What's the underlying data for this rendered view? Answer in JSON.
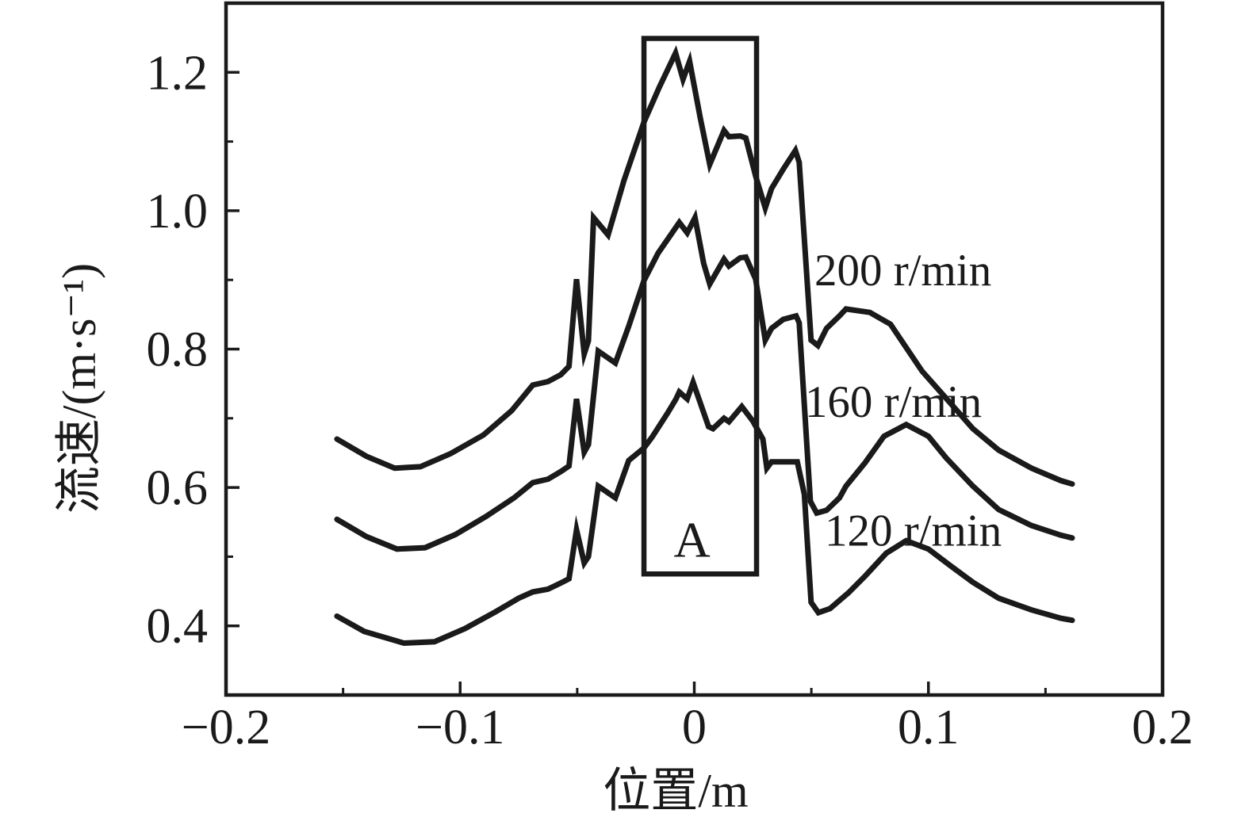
{
  "figure": {
    "background": "#ffffff",
    "ink_color": "#1a1a1a"
  },
  "chart_data": {
    "type": "line",
    "title": "",
    "xlabel": "位置/m",
    "ylabel": "流速/(m·s⁻¹)",
    "xlim": [
      -0.2,
      0.2
    ],
    "ylim": [
      0.3,
      1.3
    ],
    "grid": false,
    "frame": "full-box",
    "x_ticks": {
      "major": [
        -0.2,
        -0.1,
        0,
        0.1,
        0.2
      ],
      "major_labels": [
        "−0.2",
        "−0.1",
        "0",
        "0.1",
        "0.2"
      ],
      "minor": [
        -0.15,
        -0.05,
        0.05,
        0.15
      ]
    },
    "y_ticks": {
      "major": [
        0.4,
        0.6,
        0.8,
        1.0,
        1.2
      ],
      "major_labels": [
        "0.4",
        "0.6",
        "0.8",
        "1.0",
        "1.2"
      ],
      "minor": [
        0.5,
        0.7,
        0.9,
        1.1
      ]
    },
    "legend": "inline-labels",
    "series": [
      {
        "name": "200 r/min",
        "label": "200 r/min",
        "label_anchor": {
          "x": 0.0513,
          "y": 0.915
        },
        "points": [
          [
            -0.1526,
            0.67
          ],
          [
            -0.14,
            0.645
          ],
          [
            -0.128,
            0.628
          ],
          [
            -0.117,
            0.63
          ],
          [
            -0.104,
            0.649
          ],
          [
            -0.09,
            0.676
          ],
          [
            -0.078,
            0.711
          ],
          [
            -0.069,
            0.748
          ],
          [
            -0.0625,
            0.753
          ],
          [
            -0.057,
            0.763
          ],
          [
            -0.0535,
            0.775
          ],
          [
            -0.0503,
            0.901
          ],
          [
            -0.047,
            0.793
          ],
          [
            -0.0452,
            0.812
          ],
          [
            -0.043,
            0.99
          ],
          [
            -0.0368,
            0.965
          ],
          [
            -0.03,
            1.044
          ],
          [
            -0.0215,
            1.128
          ],
          [
            -0.015,
            1.178
          ],
          [
            -0.008,
            1.228
          ],
          [
            -0.0048,
            1.19
          ],
          [
            -0.002,
            1.216
          ],
          [
            0.0025,
            1.135
          ],
          [
            0.0066,
            1.067
          ],
          [
            0.0127,
            1.116
          ],
          [
            0.0148,
            1.107
          ],
          [
            0.0196,
            1.108
          ],
          [
            0.022,
            1.105
          ],
          [
            0.0262,
            1.05
          ],
          [
            0.0303,
            1.004
          ],
          [
            0.033,
            1.032
          ],
          [
            0.038,
            1.06
          ],
          [
            0.0432,
            1.087
          ],
          [
            0.0448,
            1.07
          ],
          [
            0.0499,
            0.813
          ],
          [
            0.0528,
            0.805
          ],
          [
            0.0565,
            0.83
          ],
          [
            0.062,
            0.848
          ],
          [
            0.0648,
            0.858
          ],
          [
            0.075,
            0.853
          ],
          [
            0.0838,
            0.836
          ],
          [
            0.0973,
            0.768
          ],
          [
            0.1065,
            0.733
          ],
          [
            0.119,
            0.685
          ],
          [
            0.13,
            0.654
          ],
          [
            0.144,
            0.628
          ],
          [
            0.1565,
            0.61
          ],
          [
            0.1614,
            0.605
          ]
        ]
      },
      {
        "name": "160 r/min",
        "label": "160 r/min",
        "label_anchor": {
          "x": 0.0472,
          "y": 0.725
        },
        "points": [
          [
            -0.1526,
            0.554
          ],
          [
            -0.14,
            0.529
          ],
          [
            -0.127,
            0.511
          ],
          [
            -0.115,
            0.513
          ],
          [
            -0.102,
            0.532
          ],
          [
            -0.089,
            0.558
          ],
          [
            -0.077,
            0.585
          ],
          [
            -0.069,
            0.607
          ],
          [
            -0.0625,
            0.612
          ],
          [
            -0.057,
            0.623
          ],
          [
            -0.0535,
            0.631
          ],
          [
            -0.0503,
            0.728
          ],
          [
            -0.047,
            0.651
          ],
          [
            -0.0452,
            0.662
          ],
          [
            -0.041,
            0.797
          ],
          [
            -0.0337,
            0.78
          ],
          [
            -0.028,
            0.833
          ],
          [
            -0.0215,
            0.899
          ],
          [
            -0.0154,
            0.939
          ],
          [
            -0.0064,
            0.983
          ],
          [
            -0.003,
            0.968
          ],
          [
            0.0003,
            0.99
          ],
          [
            0.004,
            0.924
          ],
          [
            0.0066,
            0.894
          ],
          [
            0.0127,
            0.93
          ],
          [
            0.0148,
            0.92
          ],
          [
            0.0196,
            0.932
          ],
          [
            0.022,
            0.933
          ],
          [
            0.0262,
            0.901
          ],
          [
            0.0303,
            0.813
          ],
          [
            0.033,
            0.83
          ],
          [
            0.038,
            0.843
          ],
          [
            0.0435,
            0.848
          ],
          [
            0.0448,
            0.838
          ],
          [
            0.0496,
            0.58
          ],
          [
            0.0523,
            0.563
          ],
          [
            0.0565,
            0.567
          ],
          [
            0.062,
            0.585
          ],
          [
            0.0648,
            0.602
          ],
          [
            0.073,
            0.636
          ],
          [
            0.081,
            0.674
          ],
          [
            0.0905,
            0.691
          ],
          [
            0.1,
            0.674
          ],
          [
            0.1075,
            0.643
          ],
          [
            0.119,
            0.602
          ],
          [
            0.13,
            0.568
          ],
          [
            0.144,
            0.545
          ],
          [
            0.1565,
            0.531
          ],
          [
            0.1614,
            0.527
          ]
        ]
      },
      {
        "name": "120 r/min",
        "label": "120 r/min",
        "label_anchor": {
          "x": 0.0557,
          "y": 0.539
        },
        "points": [
          [
            -0.1526,
            0.414
          ],
          [
            -0.141,
            0.392
          ],
          [
            -0.124,
            0.375
          ],
          [
            -0.111,
            0.377
          ],
          [
            -0.098,
            0.396
          ],
          [
            -0.085,
            0.42
          ],
          [
            -0.075,
            0.44
          ],
          [
            -0.069,
            0.449
          ],
          [
            -0.0625,
            0.453
          ],
          [
            -0.057,
            0.462
          ],
          [
            -0.0535,
            0.468
          ],
          [
            -0.0503,
            0.539
          ],
          [
            -0.047,
            0.491
          ],
          [
            -0.0452,
            0.5
          ],
          [
            -0.041,
            0.602
          ],
          [
            -0.0337,
            0.585
          ],
          [
            -0.028,
            0.639
          ],
          [
            -0.0215,
            0.657
          ],
          [
            -0.018,
            0.673
          ],
          [
            -0.0113,
            0.708
          ],
          [
            -0.0078,
            0.728
          ],
          [
            -0.0064,
            0.738
          ],
          [
            -0.003,
            0.728
          ],
          [
            -0.0005,
            0.752
          ],
          [
            0.0061,
            0.688
          ],
          [
            0.008,
            0.685
          ],
          [
            0.0127,
            0.7
          ],
          [
            0.0148,
            0.695
          ],
          [
            0.0203,
            0.717
          ],
          [
            0.025,
            0.696
          ],
          [
            0.0293,
            0.67
          ],
          [
            0.031,
            0.628
          ],
          [
            0.033,
            0.637
          ],
          [
            0.044,
            0.637
          ],
          [
            0.047,
            0.59
          ],
          [
            0.0499,
            0.434
          ],
          [
            0.053,
            0.419
          ],
          [
            0.058,
            0.425
          ],
          [
            0.0659,
            0.448
          ],
          [
            0.073,
            0.472
          ],
          [
            0.082,
            0.505
          ],
          [
            0.0905,
            0.523
          ],
          [
            0.1,
            0.511
          ],
          [
            0.109,
            0.488
          ],
          [
            0.119,
            0.463
          ],
          [
            0.13,
            0.44
          ],
          [
            0.144,
            0.423
          ],
          [
            0.1565,
            0.411
          ],
          [
            0.1614,
            0.408
          ]
        ]
      }
    ],
    "annotations": {
      "region_box": {
        "label": "A",
        "x0": -0.0215,
        "x1": 0.0266,
        "y0": 0.475,
        "y1": 1.249,
        "label_pos": {
          "x": -0.001,
          "y": 0.525
        }
      }
    }
  }
}
